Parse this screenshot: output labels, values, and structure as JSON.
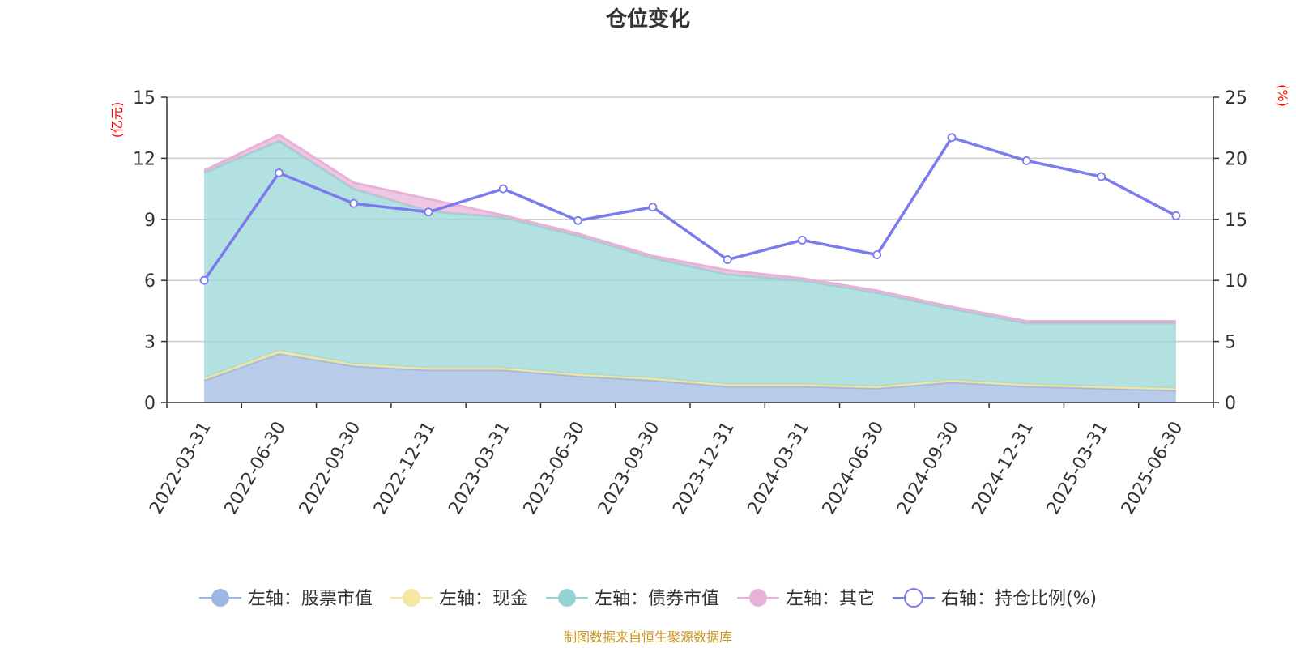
{
  "chart_data": {
    "type": "area",
    "title": "仓位变化",
    "left_axis": {
      "unit": "(亿元)",
      "ylim": [
        0,
        15
      ],
      "ticks": [
        0,
        3,
        6,
        9,
        12,
        15
      ]
    },
    "right_axis": {
      "unit": "(%)",
      "ylim": [
        0,
        25
      ],
      "ticks": [
        0,
        5,
        10,
        15,
        20,
        25
      ]
    },
    "categories": [
      "2022-03-31",
      "2022-06-30",
      "2022-09-30",
      "2022-12-31",
      "2023-03-31",
      "2023-06-30",
      "2023-09-30",
      "2023-12-31",
      "2024-03-31",
      "2024-06-30",
      "2024-09-30",
      "2024-12-31",
      "2025-03-31",
      "2025-06-30"
    ],
    "stacked_series": [
      {
        "name": "左轴：股票市值",
        "color": "#9cb8e2",
        "values": [
          1.1,
          2.4,
          1.8,
          1.6,
          1.6,
          1.3,
          1.1,
          0.8,
          0.8,
          0.7,
          1.0,
          0.8,
          0.7,
          0.6
        ]
      },
      {
        "name": "左轴：现金",
        "color": "#f5e6a0",
        "values": [
          0.1,
          0.15,
          0.1,
          0.1,
          0.1,
          0.1,
          0.1,
          0.1,
          0.1,
          0.1,
          0.1,
          0.1,
          0.1,
          0.1
        ]
      },
      {
        "name": "左轴：债券市值",
        "color": "#96d4d4",
        "values": [
          10.1,
          10.3,
          8.6,
          7.7,
          7.4,
          6.8,
          5.9,
          5.4,
          5.1,
          4.6,
          3.5,
          3.0,
          3.1,
          3.2
        ]
      },
      {
        "name": "左轴：其它",
        "color": "#e8b2d8",
        "values": [
          0.1,
          0.3,
          0.3,
          0.6,
          0.1,
          0.1,
          0.1,
          0.2,
          0.1,
          0.1,
          0.1,
          0.1,
          0.1,
          0.1
        ]
      }
    ],
    "line_series": {
      "name": "右轴：持仓比例(%)",
      "color": "#7b7bee",
      "values": [
        10.0,
        18.8,
        16.3,
        15.6,
        17.5,
        14.9,
        16.0,
        11.7,
        13.3,
        12.1,
        21.7,
        19.8,
        18.5,
        15.3
      ]
    }
  },
  "source_note": "制图数据来自恒生聚源数据库"
}
